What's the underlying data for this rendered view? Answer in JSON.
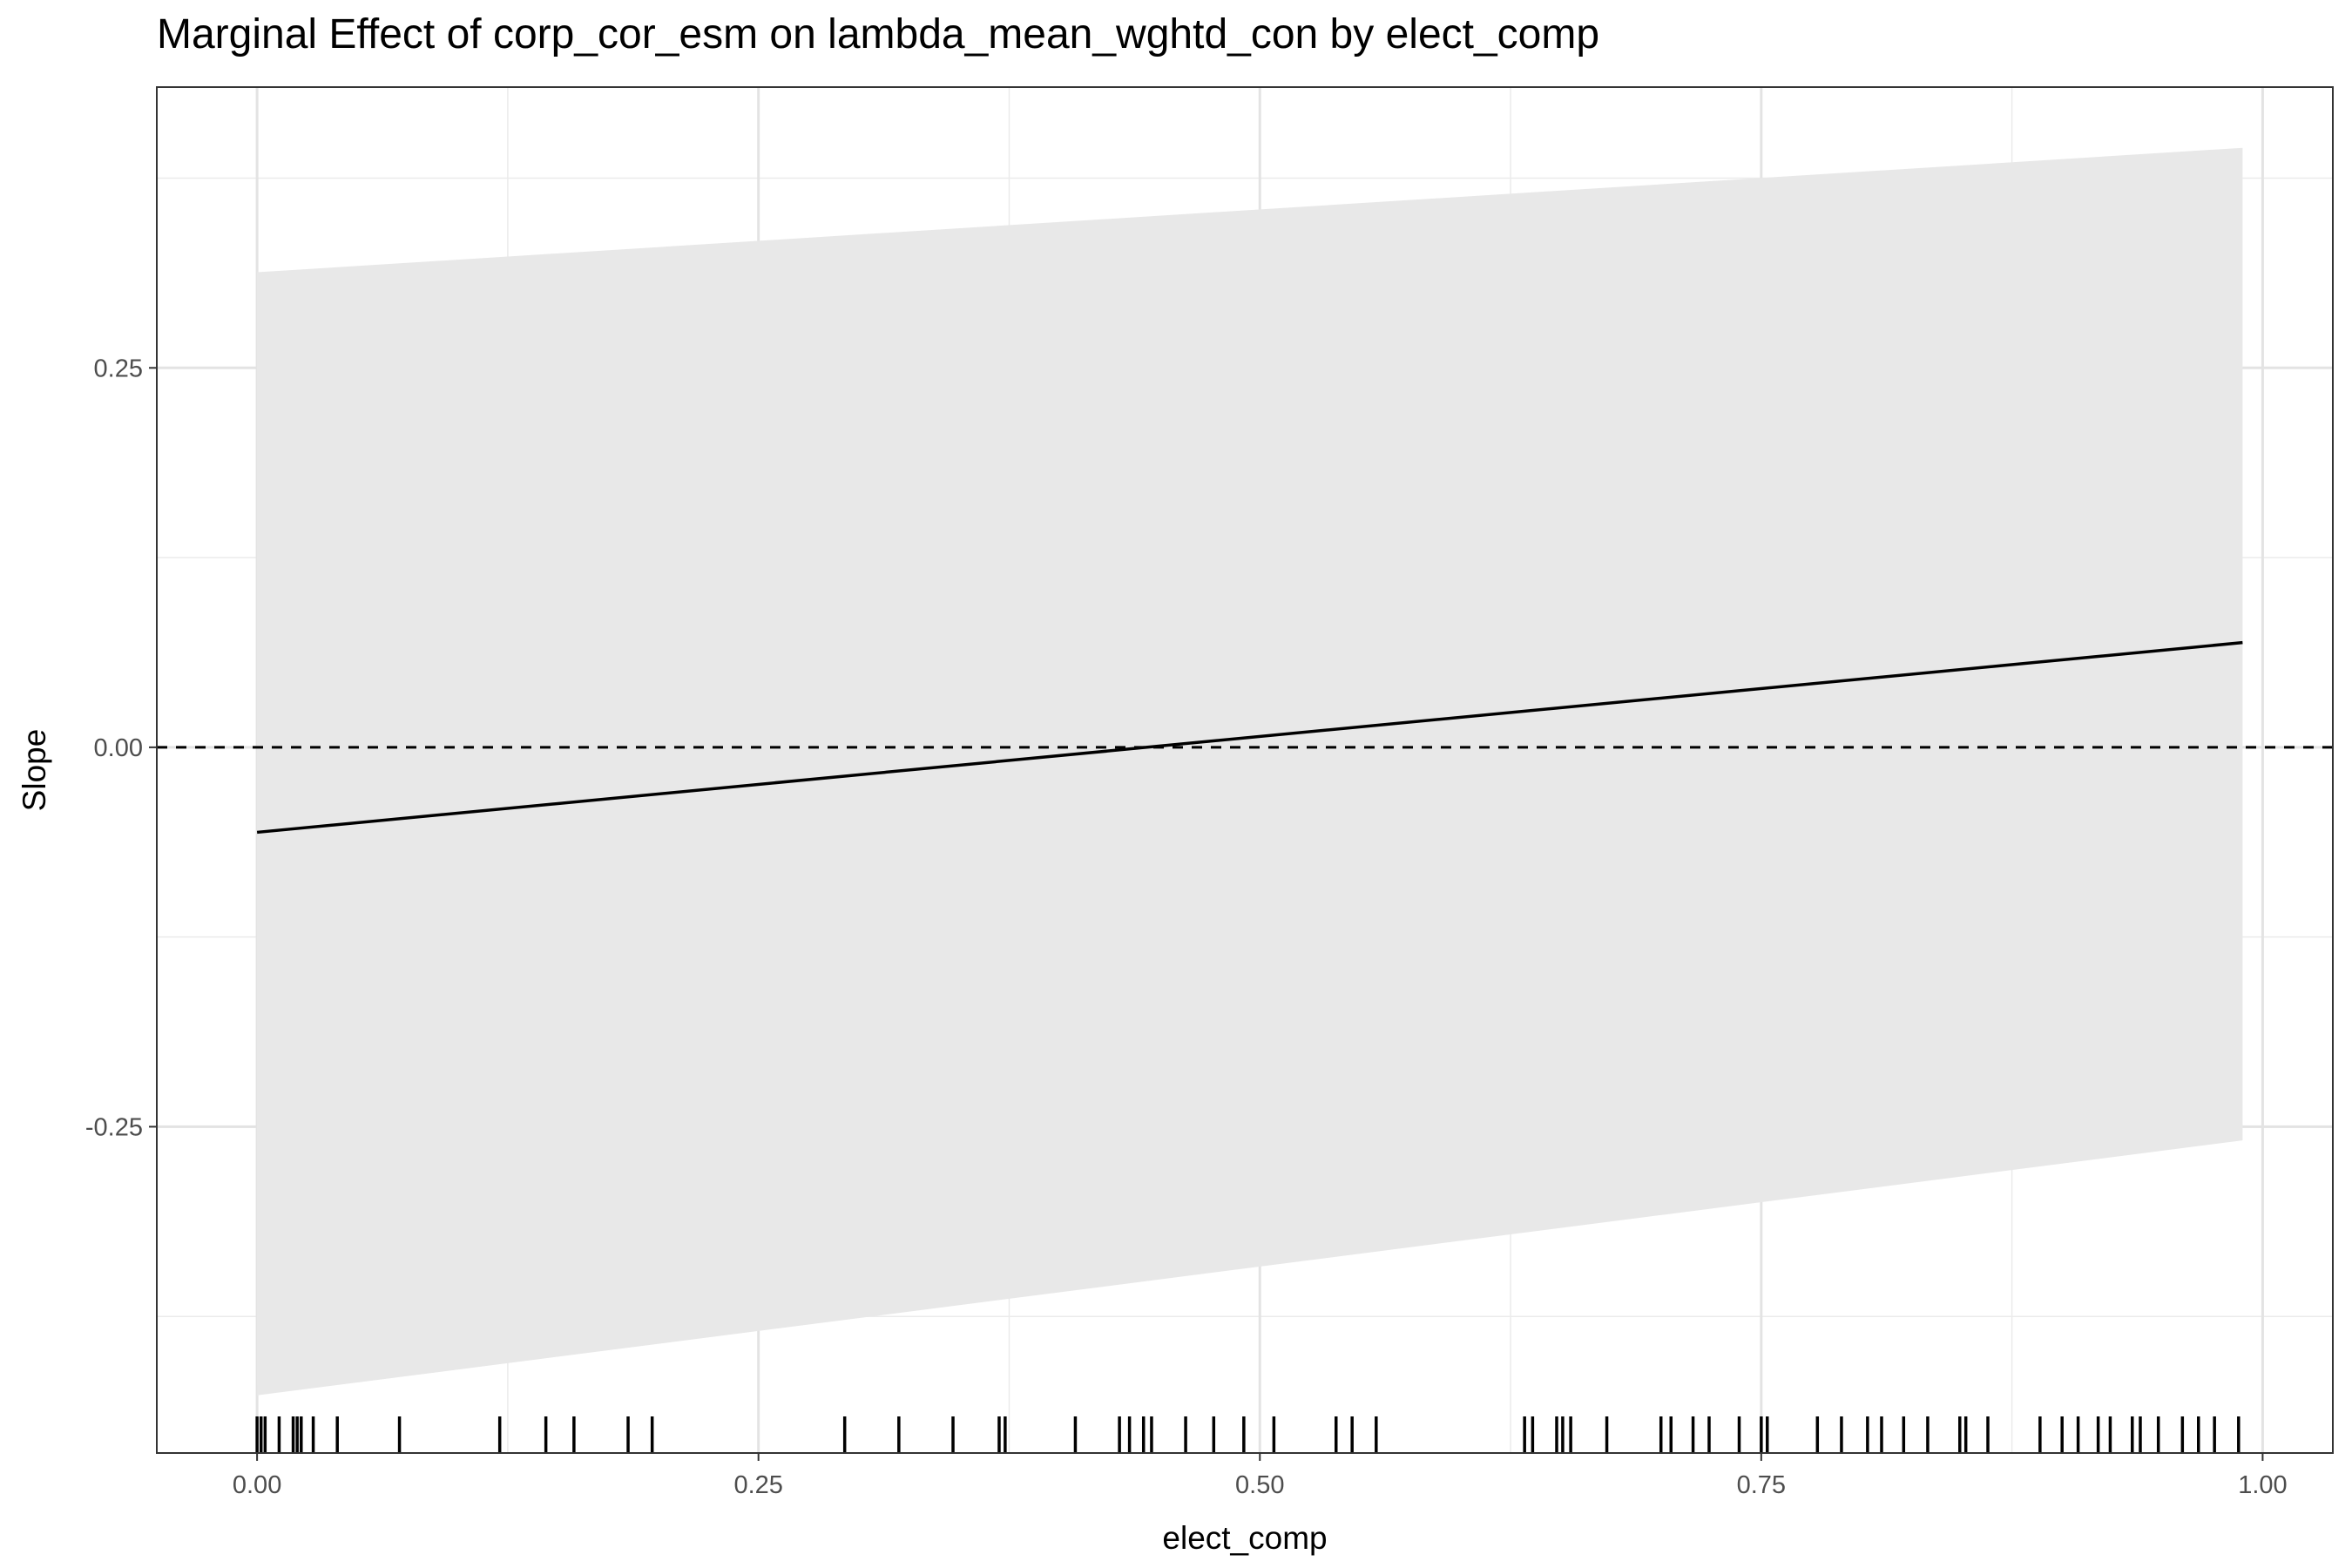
{
  "chart_data": {
    "type": "line",
    "title": "Marginal Effect of corp_cor_esm on lambda_mean_wghtd_con by elect_comp",
    "xlabel": "elect_comp",
    "ylabel": "Slope",
    "xlim": [
      -0.05,
      1.035
    ],
    "ylim": [
      -0.465,
      0.435
    ],
    "x_ticks": [
      0.0,
      0.25,
      0.5,
      0.75,
      1.0
    ],
    "x_tick_labels": [
      "0.00",
      "0.25",
      "0.50",
      "0.75",
      "1.00"
    ],
    "y_ticks": [
      -0.25,
      0.0,
      0.25
    ],
    "y_tick_labels": [
      "-0.25",
      "0.00",
      "0.25"
    ],
    "grid": true,
    "reference_line": {
      "y": 0,
      "style": "dashed"
    },
    "series": [
      {
        "type": "line",
        "x": [
          0.0,
          0.99
        ],
        "y": [
          -0.056,
          0.069
        ]
      },
      {
        "type": "ribbon",
        "x": [
          0.0,
          0.99
        ],
        "lower": [
          -0.427,
          -0.259
        ],
        "upper": [
          0.313,
          0.395
        ]
      }
    ],
    "rug": [
      0.0,
      0.002,
      0.004,
      0.011,
      0.018,
      0.02,
      0.022,
      0.028,
      0.04,
      0.071,
      0.121,
      0.144,
      0.158,
      0.185,
      0.197,
      0.293,
      0.32,
      0.347,
      0.37,
      0.373,
      0.408,
      0.43,
      0.435,
      0.442,
      0.446,
      0.463,
      0.477,
      0.492,
      0.507,
      0.538,
      0.546,
      0.558,
      0.632,
      0.636,
      0.648,
      0.651,
      0.655,
      0.673,
      0.7,
      0.705,
      0.716,
      0.724,
      0.739,
      0.75,
      0.753,
      0.778,
      0.79,
      0.803,
      0.81,
      0.821,
      0.833,
      0.849,
      0.852,
      0.863,
      0.889,
      0.9,
      0.908,
      0.918,
      0.924,
      0.935,
      0.939,
      0.948,
      0.96,
      0.968,
      0.976,
      0.988
    ]
  }
}
